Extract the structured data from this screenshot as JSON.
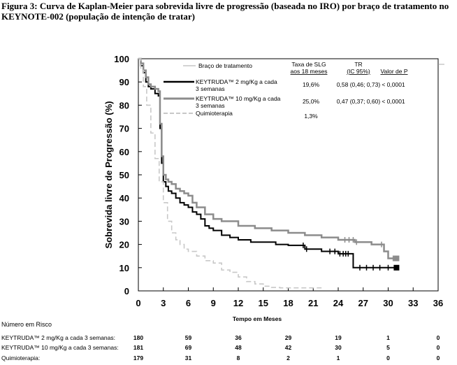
{
  "figure_title": "Figura 3: Curva de Kaplan-Meier para sobrevida livre de progressão (baseada no IRO) por braço de tratamento no KEYNOTE-002 (população de intenção de tratar)",
  "colors": {
    "keytruda_2": "#000000",
    "keytruda_10": "#8c8c8c",
    "quimio": "#c8c8c8"
  },
  "chart_data": {
    "type": "line",
    "title": "",
    "xlabel": "Tempo em Meses",
    "ylabel": "Sobrevida livre de Progressão (%)",
    "xlim": [
      0,
      36
    ],
    "ylim": [
      0,
      100
    ],
    "xticks": [
      0,
      3,
      6,
      9,
      12,
      15,
      18,
      21,
      24,
      27,
      30,
      33,
      36
    ],
    "yticks": [
      0,
      10,
      20,
      30,
      40,
      50,
      60,
      70,
      80,
      90,
      100
    ],
    "legend": {
      "title": "Braço de tratamento",
      "col_slg": "Taxa de SLG\naos 18 meses",
      "col_tr": "TR\n(IC 95%)",
      "col_p": "Valor de P",
      "rows": [
        {
          "label": "KEYTRUDA™ 2 mg/Kg a cada\n3 semanas",
          "slg": "19,6%",
          "tr": "0,58 (0,46; 0,73)",
          "p": "< 0,0001"
        },
        {
          "label": "KEYTRUDA™ 10 mg/Kg a cada\n3 semanas",
          "slg": "25,0%",
          "tr": "0,47 (0,37; 0,60)",
          "p": "< 0,0001"
        },
        {
          "label": "Quimioterapia",
          "slg": "1,3%",
          "tr": "",
          "p": ""
        }
      ]
    },
    "series": [
      {
        "name": "KEYTRUDA 2 mg/Kg a cada 3 semanas",
        "style": "solid",
        "x": [
          0,
          0.3,
          0.6,
          0.9,
          1.2,
          1.5,
          2.0,
          2.4,
          2.6,
          2.8,
          3.0,
          3.3,
          3.6,
          4.0,
          4.5,
          5.0,
          5.5,
          6.0,
          6.5,
          7.0,
          7.5,
          8.0,
          8.5,
          9.0,
          10.0,
          11.0,
          12.0,
          13.5,
          15.0,
          16.5,
          18.0,
          20.0,
          22.0,
          24.0,
          25.0,
          25.5,
          25.8,
          27.0,
          29.0,
          30.0,
          31.0
        ],
        "y": [
          100,
          97,
          94,
          90,
          88,
          87,
          85,
          84,
          70,
          55,
          47,
          45,
          43,
          42,
          40,
          38,
          37,
          36,
          34,
          33,
          31,
          28,
          27,
          26,
          24,
          23,
          22,
          21,
          21,
          20,
          19.6,
          18,
          17,
          16,
          16,
          16,
          10,
          10,
          10,
          10,
          10
        ]
      },
      {
        "name": "KEYTRUDA 10 mg/Kg a cada 3 semanas",
        "style": "solid",
        "x": [
          0,
          0.3,
          0.6,
          0.9,
          1.2,
          1.5,
          2.0,
          2.4,
          2.6,
          2.8,
          3.0,
          3.3,
          3.6,
          4.0,
          4.5,
          5.0,
          5.5,
          6.0,
          6.5,
          7.0,
          8.0,
          9.0,
          10.0,
          12.0,
          14.0,
          16.0,
          18.0,
          20.0,
          22.0,
          24.0,
          25.0,
          26.0,
          27.0,
          28.0,
          29.0,
          29.5,
          30.0,
          31.0
        ],
        "y": [
          100,
          98,
          95,
          92,
          89,
          88,
          87,
          86,
          72,
          58,
          50,
          48,
          47,
          46,
          44,
          43,
          42,
          41,
          38,
          36,
          33,
          31,
          30,
          28,
          27,
          26,
          25,
          24,
          23,
          22,
          22,
          21,
          21,
          20,
          20,
          17,
          14,
          14
        ]
      },
      {
        "name": "Quimioterapia",
        "style": "dashed",
        "x": [
          0,
          0.3,
          0.6,
          1.0,
          1.5,
          2.0,
          2.5,
          3.0,
          3.5,
          4.0,
          4.5,
          5.0,
          5.5,
          6.0,
          7.0,
          8.0,
          9.0,
          10.0,
          11.0,
          12.0,
          13.0,
          14.0,
          15.0,
          16.0,
          17.0,
          18.0,
          20.0,
          22.0
        ],
        "y": [
          100,
          95,
          88,
          80,
          68,
          57,
          47,
          38,
          30,
          25,
          22,
          20,
          18,
          17,
          15,
          13,
          12,
          9,
          8,
          6,
          4,
          3,
          2,
          1.5,
          1.3,
          1.3,
          1.3,
          1.3
        ]
      }
    ],
    "censor_marks": [
      {
        "series": 0,
        "x": [
          19.8,
          20.2,
          23.0,
          23.6,
          24.2,
          24.6,
          24.9,
          25.2,
          26.6,
          27.4,
          28.2,
          29.0,
          30.0
        ]
      },
      {
        "series": 1,
        "x": [
          24.8,
          25.3,
          25.8,
          26.2,
          29.2,
          30.6
        ]
      }
    ],
    "risk_table": {
      "title": "Número em Risco",
      "times": [
        0,
        6,
        12,
        18,
        24,
        30,
        36
      ],
      "rows": [
        {
          "label": "KEYTRUDA™ 2 mg/Kg a cada 3 semanas:",
          "values": [
            "180",
            "59",
            "36",
            "29",
            "19",
            "1",
            "0"
          ]
        },
        {
          "label": "KEYTRUDA™ 10 mg/Kg a cada 3 semanas:",
          "values": [
            "181",
            "69",
            "48",
            "42",
            "30",
            "5",
            "0"
          ]
        },
        {
          "label": "Quimioterapia:",
          "values": [
            "179",
            "31",
            "8",
            "2",
            "1",
            "0",
            "0"
          ]
        }
      ]
    }
  }
}
